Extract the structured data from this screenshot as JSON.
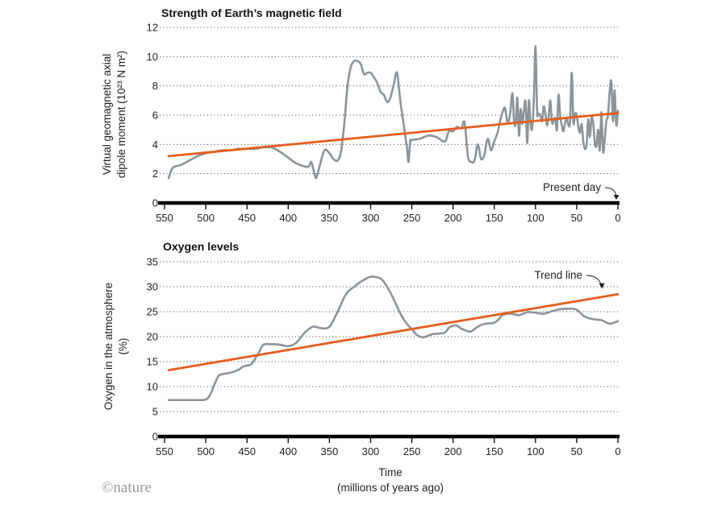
{
  "chart_data": [
    {
      "type": "line",
      "title": "Strength of Earth’s magnetic field",
      "ylabel_lines": [
        "Virtual geomagnetic axial",
        "dipole moment (10²³ N m²)"
      ],
      "xlabel": "",
      "x_direction": "reversed",
      "xlim": [
        550,
        0
      ],
      "ylim": [
        0,
        12
      ],
      "x_ticks": [
        550,
        500,
        450,
        400,
        350,
        300,
        250,
        200,
        150,
        100,
        50,
        0
      ],
      "y_ticks": [
        0,
        2,
        4,
        6,
        8,
        10,
        12
      ],
      "grid": true,
      "annotations": [
        {
          "text": "Present day",
          "x": 0
        }
      ],
      "series": [
        {
          "name": "Virtual geomagnetic axial dipole moment",
          "x": [
            545,
            540,
            530,
            520,
            510,
            500,
            490,
            480,
            470,
            460,
            450,
            440,
            430,
            420,
            410,
            400,
            390,
            380,
            375,
            372,
            369,
            366,
            362,
            356,
            350,
            345,
            340,
            336,
            332,
            328,
            324,
            320,
            316,
            312,
            308,
            304,
            300,
            296,
            292,
            288,
            284,
            280,
            276,
            272,
            268,
            264,
            260,
            256,
            254,
            252,
            250,
            240,
            230,
            220,
            210,
            205,
            200,
            195,
            190,
            186,
            182,
            178,
            174,
            170,
            166,
            162,
            158,
            154,
            150,
            146,
            143,
            140,
            137,
            134,
            131,
            128,
            126,
            124,
            122,
            120,
            118,
            116,
            114,
            112,
            110,
            108,
            106,
            104,
            102,
            100,
            98,
            96,
            94,
            92,
            90,
            88,
            86,
            84,
            82,
            80,
            78,
            76,
            74,
            72,
            70,
            68,
            66,
            64,
            62,
            60,
            58,
            56,
            54,
            52,
            50,
            48,
            46,
            44,
            42,
            40,
            38,
            36,
            34,
            32,
            30,
            28,
            26,
            24,
            22,
            20,
            18,
            16,
            14,
            12,
            10,
            8,
            6,
            4,
            2,
            0
          ],
          "values": [
            1.7,
            2.4,
            2.6,
            2.9,
            3.2,
            3.4,
            3.5,
            3.6,
            3.6,
            3.7,
            3.7,
            3.7,
            3.8,
            3.8,
            3.5,
            3.1,
            2.7,
            2.5,
            2.5,
            2.8,
            2.2,
            1.7,
            2.5,
            3.6,
            3.4,
            3.0,
            2.9,
            3.5,
            5.4,
            8.0,
            9.3,
            9.7,
            9.7,
            9.5,
            8.8,
            8.9,
            8.9,
            8.6,
            8.2,
            7.6,
            7.4,
            6.9,
            7.2,
            8.1,
            8.9,
            7.0,
            5.4,
            3.8,
            2.8,
            4.2,
            4.3,
            4.4,
            4.6,
            4.5,
            4.2,
            4.9,
            4.9,
            5.2,
            5.1,
            5.5,
            3.2,
            2.8,
            2.9,
            4.0,
            3.0,
            3.3,
            4.4,
            3.6,
            4.2,
            4.8,
            5.6,
            6.2,
            6.5,
            5.5,
            6.0,
            7.5,
            5.6,
            5.4,
            7.2,
            4.6,
            6.4,
            5.4,
            6.3,
            6.9,
            4.1,
            7.0,
            5.4,
            5.1,
            7.1,
            10.7,
            6.3,
            6.1,
            6.0,
            5.6,
            6.6,
            6.1,
            5.3,
            5.9,
            7.0,
            5.5,
            5.6,
            5.8,
            5.0,
            7.4,
            5.9,
            5.3,
            4.9,
            5.5,
            5.8,
            5.3,
            5.6,
            8.9,
            5.5,
            6.1,
            6.0,
            5.2,
            4.8,
            5.4,
            4.2,
            3.7,
            4.0,
            5.7,
            4.5,
            5.8,
            5.5,
            4.1,
            3.9,
            5.0,
            3.6,
            6.2,
            3.5,
            4.4,
            5.6,
            6.0,
            7.6,
            8.3,
            5.6,
            7.7,
            5.3,
            6.3
          ]
        },
        {
          "name": "Trend line",
          "x": [
            545,
            0
          ],
          "values": [
            3.2,
            6.15
          ]
        }
      ]
    },
    {
      "type": "line",
      "title": "Oxygen levels",
      "ylabel_lines": [
        "Oxygen in the atmosphere",
        "(%)"
      ],
      "xlabel_lines": [
        "Time",
        "(millions of years ago)"
      ],
      "x_direction": "reversed",
      "xlim": [
        550,
        0
      ],
      "ylim": [
        0,
        35
      ],
      "x_ticks": [
        550,
        500,
        450,
        400,
        350,
        300,
        250,
        200,
        150,
        100,
        50,
        0
      ],
      "y_ticks": [
        0,
        5,
        10,
        15,
        20,
        25,
        30,
        35
      ],
      "grid": true,
      "annotations": [
        {
          "text": "Trend line",
          "x": 20
        }
      ],
      "series": [
        {
          "name": "Oxygen in the atmosphere",
          "x": [
            545,
            530,
            520,
            510,
            500,
            495,
            490,
            485,
            480,
            470,
            460,
            455,
            450,
            445,
            440,
            435,
            430,
            420,
            410,
            400,
            390,
            380,
            370,
            360,
            350,
            340,
            330,
            320,
            310,
            300,
            290,
            285,
            280,
            275,
            270,
            265,
            260,
            255,
            250,
            245,
            240,
            235,
            230,
            225,
            220,
            210,
            205,
            200,
            195,
            190,
            180,
            175,
            170,
            165,
            160,
            150,
            145,
            140,
            130,
            120,
            110,
            100,
            90,
            80,
            70,
            60,
            55,
            50,
            45,
            40,
            30,
            20,
            10,
            0
          ],
          "values": [
            7.3,
            7.3,
            7.3,
            7.3,
            7.4,
            8.3,
            10.2,
            12.0,
            12.5,
            12.8,
            13.4,
            14.0,
            14.2,
            14.5,
            15.6,
            17.0,
            18.4,
            18.5,
            18.4,
            18.1,
            18.8,
            20.8,
            22.0,
            21.7,
            22.0,
            25.0,
            28.5,
            30.0,
            31.2,
            32.0,
            31.8,
            31.2,
            30.0,
            28.5,
            26.8,
            25.0,
            23.5,
            22.4,
            21.5,
            20.5,
            20.0,
            19.9,
            20.2,
            20.5,
            20.6,
            20.8,
            21.8,
            22.2,
            22.2,
            21.6,
            21.0,
            21.4,
            22.0,
            22.4,
            22.6,
            22.8,
            23.4,
            24.3,
            24.6,
            24.3,
            24.9,
            24.8,
            24.6,
            25.1,
            25.5,
            25.6,
            25.6,
            25.4,
            24.7,
            24.0,
            23.5,
            23.3,
            22.6,
            23.1
          ]
        },
        {
          "name": "Trend line",
          "x": [
            545,
            0
          ],
          "values": [
            13.3,
            28.5
          ]
        }
      ]
    }
  ],
  "credit": "©nature"
}
